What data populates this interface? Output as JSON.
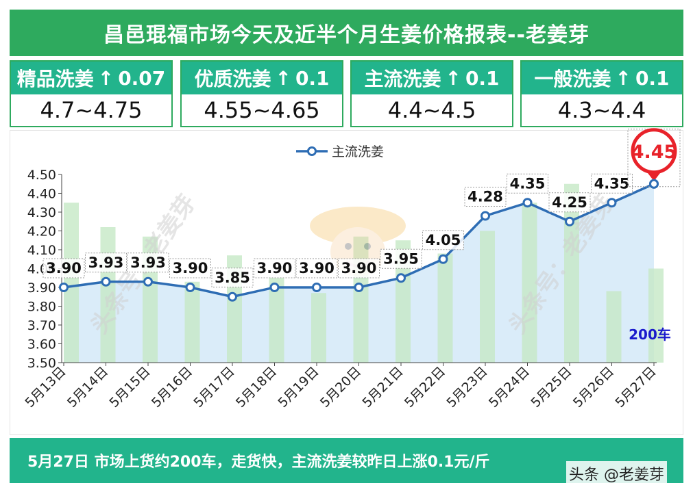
{
  "title": "昌邑琨福市场今天及近半个月生姜价格报表--老姜芽",
  "cards": [
    {
      "name": "精品洗姜",
      "arrow": "↑",
      "change": "0.07",
      "range": "4.7~4.75"
    },
    {
      "name": "优质洗姜",
      "arrow": "↑",
      "change": "0.1",
      "range": "4.55~4.65"
    },
    {
      "name": "主流洗姜",
      "arrow": "↑",
      "change": "0.1",
      "range": "4.4~4.5"
    },
    {
      "name": "一般洗姜",
      "arrow": "↑",
      "change": "0.1",
      "range": "4.3~4.4"
    }
  ],
  "chart_data": {
    "type": "line",
    "title": "",
    "xlabel": "",
    "ylabel": "",
    "legend": "top-center",
    "ylim": [
      3.5,
      4.5
    ],
    "yticks": [
      "4.50",
      "4.40",
      "4.30",
      "4.20",
      "4.10",
      "4.00",
      "3.90",
      "3.80",
      "3.70",
      "3.60",
      "3.50"
    ],
    "categories": [
      "5月13日",
      "5月14日",
      "5月15日",
      "5月16日",
      "5月17日",
      "5月18日",
      "5月19日",
      "5月20日",
      "5月21日",
      "5月22日",
      "5月23日",
      "5月24日",
      "5月25日",
      "5月26日",
      "5月27日"
    ],
    "series": [
      {
        "name": "主流洗姜",
        "values": [
          3.9,
          3.93,
          3.93,
          3.9,
          3.85,
          3.9,
          3.9,
          3.9,
          3.95,
          4.05,
          4.28,
          4.35,
          4.25,
          4.35,
          4.45
        ],
        "labels": [
          "3.90",
          "3.93",
          "3.93",
          "3.90",
          "3.85",
          "3.90",
          "3.90",
          "3.90",
          "3.95",
          "4.05",
          "4.28",
          "4.35",
          "4.25",
          "4.35",
          "4.45"
        ]
      }
    ],
    "bars": [
      4.35,
      4.22,
      4.17,
      3.93,
      4.07,
      3.95,
      3.87,
      4.17,
      4.15,
      4.08,
      4.2,
      4.35,
      4.45,
      3.88,
      4.0
    ],
    "bar_annotation": "200车",
    "highlight_index": 14,
    "colors": {
      "line": "#2e6db4",
      "area": "#d6eaf8",
      "bar": "#c5e8c5",
      "highlight": "#e8222a",
      "annotation": "#1a1acc"
    }
  },
  "watermarks": [
    "头条号：老姜芽",
    "头条号：老姜芽"
  ],
  "footer": "5月27日  市场上货约200车，走货快，主流洗姜较昨日上涨0.1元/斤",
  "credit": "头条 @老姜芽"
}
